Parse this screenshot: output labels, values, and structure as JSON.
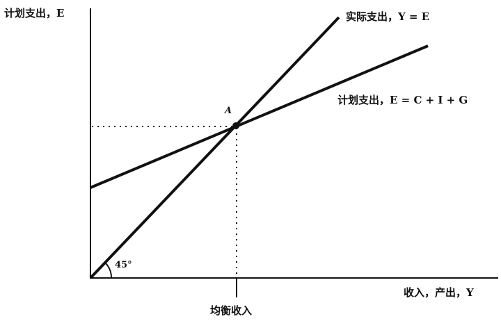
{
  "diagram": {
    "y_axis_label": "计划支出，E",
    "x_axis_label": "收入，产出，Y",
    "actual_line_label": "实际支出，Y = E",
    "planned_line_label": "计划支出，E = C + I + G",
    "point_label": "A",
    "angle_label": "45°",
    "equilibrium_label": "均衡收入"
  },
  "colors": {
    "ink": "#111111",
    "background": "#ffffff"
  }
}
